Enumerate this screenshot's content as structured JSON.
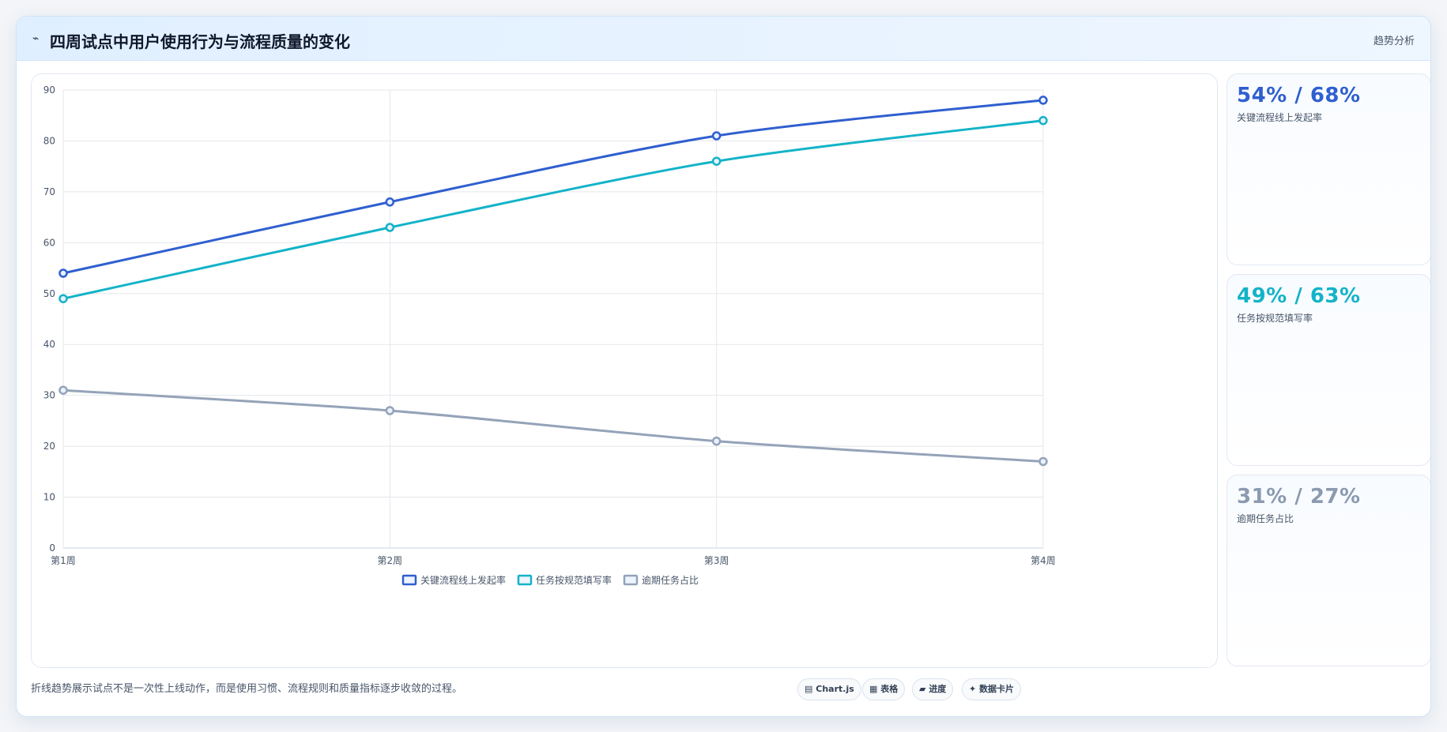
{
  "header": {
    "icon": "chart-line-icon",
    "icon_glyph": "⌁",
    "title": "四周试点中用户使用行为与流程质量的变化",
    "tag": "趋势分析"
  },
  "chart_data": {
    "type": "line",
    "categories": [
      "第1周",
      "第2周",
      "第3周",
      "第4周"
    ],
    "ylim": [
      0,
      90
    ],
    "yticks": [
      0,
      10,
      20,
      30,
      40,
      50,
      60,
      70,
      80,
      90
    ],
    "grid": true,
    "legend_position": "bottom",
    "series": [
      {
        "name": "关键流程线上发起率",
        "values": [
          54,
          68,
          81,
          88
        ],
        "color": "#2f5fcf"
      },
      {
        "name": "任务按规范填写率",
        "values": [
          49,
          63,
          76,
          84
        ],
        "color": "#13b3c8"
      },
      {
        "name": "逾期任务占比",
        "values": [
          31,
          27,
          21,
          17
        ],
        "color": "#94a3b8"
      }
    ]
  },
  "stats": [
    {
      "value": "54% / 68%",
      "label": "关键流程线上发起率",
      "color": "#2f5fcf"
    },
    {
      "value": "49% / 63%",
      "label": "任务按规范填写率",
      "color": "#13b3c8"
    },
    {
      "value": "31% / 27%",
      "label": "逾期任务占比",
      "color": "#8b9ab0"
    }
  ],
  "footer": {
    "note": "折线趋势展示试点不是一次性上线动作，而是使用习惯、流程规则和质量指标逐步收敛的过程。",
    "badges": [
      {
        "icon": "chart-icon",
        "glyph": "▤",
        "label": "Chart.js"
      },
      {
        "icon": "table-icon",
        "glyph": "▦",
        "label": "表格"
      },
      {
        "icon": "progress-icon",
        "glyph": "▰",
        "label": "进度"
      },
      {
        "icon": "sparkle-icon",
        "glyph": "✦",
        "label": "数据卡片"
      }
    ]
  }
}
